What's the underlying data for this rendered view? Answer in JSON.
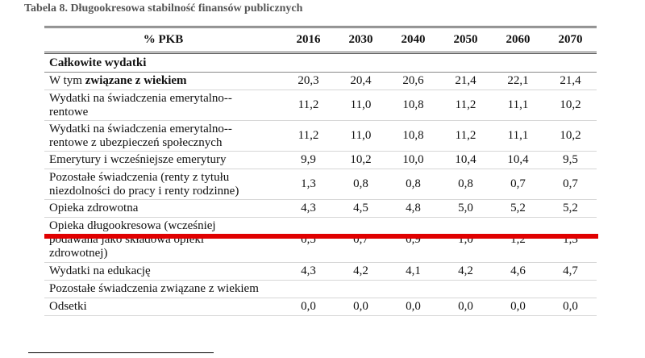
{
  "caption": "Tabela 8. Długookresowa stabilność finansów publicznych",
  "header": [
    "% PKB",
    "2016",
    "2030",
    "2040",
    "2050",
    "2060",
    "2070"
  ],
  "section": "Całkowite wydatki",
  "rows": [
    {
      "label_plain": "W tym ",
      "label_bold": "związane z wiekiem",
      "values": [
        "20,3",
        "20,4",
        "20,6",
        "21,4",
        "22,1",
        "21,4"
      ]
    },
    {
      "label": "Wydatki na świadczenia emerytalno--\nrentowe",
      "values": [
        "11,2",
        "11,0",
        "10,8",
        "11,2",
        "11,1",
        "10,2"
      ]
    },
    {
      "label": "Wydatki na świadczenia emerytalno--\nrentowe z ubezpieczeń społecznych",
      "values": [
        "11,2",
        "11,0",
        "10,8",
        "11,2",
        "11,1",
        "10,2"
      ]
    },
    {
      "label": "Emerytury i wcześniejsze emerytury",
      "values": [
        "9,9",
        "10,2",
        "10,0",
        "10,4",
        "10,4",
        "9,5"
      ]
    },
    {
      "label": "Pozostałe świadczenia (renty z tytułu\nniezdolności do pracy i renty rodzinne)",
      "values": [
        "1,3",
        "0,8",
        "0,8",
        "0,8",
        "0,7",
        "0,7"
      ]
    },
    {
      "label": "Opieka zdrowotna",
      "values": [
        "4,3",
        "4,5",
        "4,8",
        "5,0",
        "5,2",
        "5,2"
      ]
    },
    {
      "label": "Opieka długookresowa (wcześniej\npodawana jako składowa opieki\nzdrowotnej)",
      "values": [
        "0,5",
        "0,7",
        "0,9",
        "1,0",
        "1,2",
        "1,3"
      ]
    },
    {
      "label": "Wydatki na edukację",
      "values": [
        "4,3",
        "4,2",
        "4,1",
        "4,2",
        "4,6",
        "4,7"
      ]
    },
    {
      "label": "Pozostałe świadczenia związane z wiekiem",
      "values": [
        "",
        "",
        "",
        "",
        "",
        ""
      ]
    },
    {
      "label": "Odsetki",
      "values": [
        "0,0",
        "0,0",
        "0,0",
        "0,0",
        "0,0",
        "0,0"
      ]
    }
  ],
  "highlight_color": "#e00000"
}
